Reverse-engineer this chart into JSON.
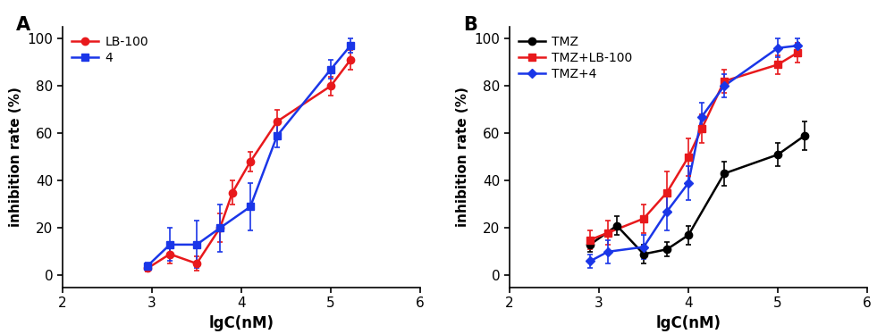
{
  "panel_A": {
    "label": "A",
    "series": [
      {
        "name": "LB-100",
        "color": "#e8191c",
        "marker": "o",
        "x": [
          2.95,
          3.2,
          3.5,
          3.76,
          3.9,
          4.1,
          4.4,
          5.0,
          5.22
        ],
        "y": [
          3.0,
          9.0,
          5.0,
          20.0,
          35.0,
          48.0,
          65.0,
          80.0,
          91.0
        ],
        "yerr": [
          1.5,
          4.0,
          3.0,
          6.0,
          5.0,
          4.0,
          5.0,
          4.0,
          4.0
        ],
        "sigmoid_p0": [
          95,
          4.1,
          3.5,
          0
        ]
      },
      {
        "name": "4",
        "color": "#1a36e8",
        "marker": "s",
        "x": [
          2.95,
          3.2,
          3.5,
          3.76,
          4.1,
          4.4,
          5.0,
          5.22
        ],
        "y": [
          4.0,
          13.0,
          13.0,
          20.0,
          29.0,
          59.0,
          87.0,
          97.0
        ],
        "yerr": [
          1.5,
          7.0,
          10.0,
          10.0,
          10.0,
          5.0,
          4.0,
          3.0
        ],
        "sigmoid_p0": [
          95,
          4.5,
          3.5,
          0
        ]
      }
    ],
    "xlabel": "lgC(nM)",
    "ylabel": "inhibition rate (%)",
    "xlim": [
      2,
      6
    ],
    "ylim": [
      -5,
      105
    ],
    "yticks": [
      0,
      20,
      40,
      60,
      80,
      100
    ],
    "xticks": [
      2,
      3,
      4,
      5,
      6
    ]
  },
  "panel_B": {
    "label": "B",
    "series": [
      {
        "name": "TMZ",
        "color": "#000000",
        "marker": "o",
        "x": [
          2.9,
          3.2,
          3.5,
          3.76,
          4.0,
          4.4,
          5.0,
          5.3
        ],
        "y": [
          13.0,
          21.0,
          9.0,
          11.0,
          17.0,
          43.0,
          51.0,
          59.0
        ],
        "yerr": [
          3.0,
          4.0,
          4.0,
          3.0,
          4.0,
          5.0,
          5.0,
          6.0
        ],
        "sigmoid_p0": [
          80,
          4.9,
          4.0,
          5
        ]
      },
      {
        "name": "TMZ+LB-100",
        "color": "#e8191c",
        "marker": "s",
        "x": [
          2.9,
          3.1,
          3.5,
          3.76,
          4.0,
          4.15,
          4.4,
          5.0,
          5.22
        ],
        "y": [
          15.0,
          18.0,
          24.0,
          35.0,
          50.0,
          62.0,
          82.0,
          89.0,
          94.0
        ],
        "yerr": [
          4.0,
          5.0,
          6.0,
          9.0,
          8.0,
          6.0,
          5.0,
          4.0,
          4.0
        ],
        "sigmoid_p0": [
          85,
          4.0,
          3.5,
          10
        ]
      },
      {
        "name": "TMZ+4",
        "color": "#1a36e8",
        "marker": "D",
        "x": [
          2.9,
          3.1,
          3.5,
          3.76,
          4.0,
          4.15,
          4.4,
          5.0,
          5.22
        ],
        "y": [
          6.0,
          10.0,
          12.0,
          27.0,
          39.0,
          67.0,
          80.0,
          96.0,
          97.0
        ],
        "yerr": [
          3.0,
          5.0,
          5.0,
          8.0,
          7.0,
          6.0,
          5.0,
          4.0,
          3.0
        ],
        "sigmoid_p0": [
          92,
          4.1,
          4.0,
          3
        ]
      }
    ],
    "xlabel": "lgC(nM)",
    "ylabel": "inhibition rate (%)",
    "xlim": [
      2,
      6
    ],
    "ylim": [
      -5,
      105
    ],
    "yticks": [
      0,
      20,
      40,
      60,
      80,
      100
    ],
    "xticks": [
      2,
      3,
      4,
      5,
      6
    ]
  }
}
